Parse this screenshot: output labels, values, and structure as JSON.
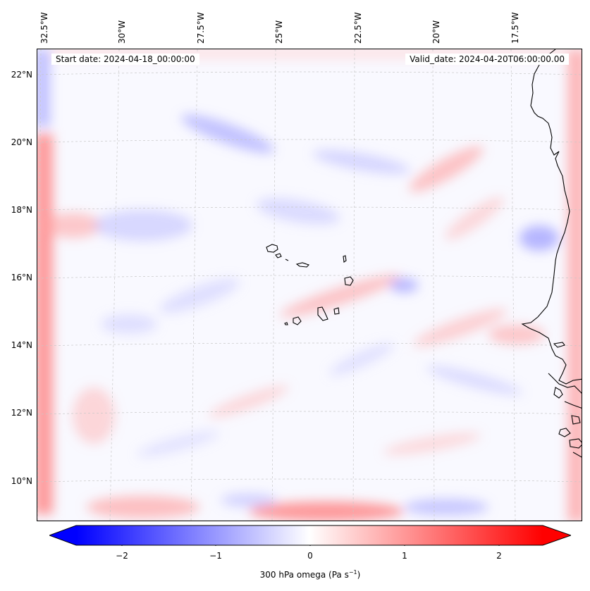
{
  "map": {
    "start_label": "Start date: 2024-04-18_00:00:00",
    "valid_label": "Valid_date: 2024-04-20T06:00:00.00",
    "lon_labels": [
      "32.5°W",
      "30°W",
      "27.5°W",
      "25°W",
      "22.5°W",
      "20°W",
      "17.5°W"
    ],
    "lat_labels": [
      "22°N",
      "20°N",
      "18°N",
      "16°N",
      "14°N",
      "12°N",
      "10°N"
    ],
    "colors": {
      "negative": "#0000ff",
      "zero": "#ffffff",
      "positive": "#ff0000",
      "coast": "#000000"
    }
  },
  "colorbar": {
    "ticks": [
      "−2",
      "−1",
      "0",
      "1",
      "2"
    ],
    "label": "300 hPa omega (Pa s",
    "label_sup": "−1",
    "label_end": ")",
    "range": [
      -2.5,
      2.5
    ]
  }
}
